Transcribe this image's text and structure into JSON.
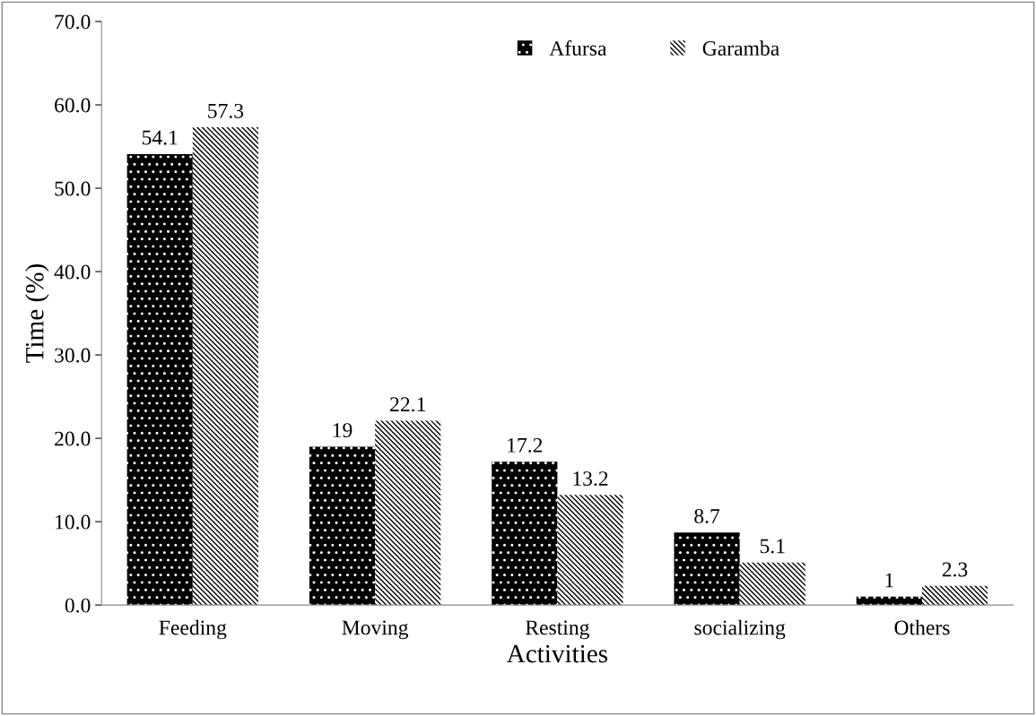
{
  "chart_data": {
    "type": "bar",
    "xlabel": "Activities",
    "ylabel": "Time (%)",
    "categories": [
      "Feeding",
      "Moving",
      "Resting",
      "socializing",
      "Others"
    ],
    "series": [
      {
        "name": "Afursa",
        "color": "#000000",
        "values": [
          54.1,
          19,
          17.2,
          8.7,
          1
        ]
      },
      {
        "name": "Garamba",
        "color": "#ffffff",
        "values": [
          57.3,
          22.1,
          13.2,
          5.1,
          2.3
        ]
      }
    ],
    "ylim": [
      0,
      70
    ],
    "yticks": [
      {
        "value": 0,
        "label": "0.0"
      },
      {
        "value": 10,
        "label": "10.0"
      },
      {
        "value": 20,
        "label": "20.0"
      },
      {
        "value": 30,
        "label": "30.0"
      },
      {
        "value": 40,
        "label": "40.0"
      },
      {
        "value": 50,
        "label": "50.0"
      },
      {
        "value": 60,
        "label": "60.0"
      },
      {
        "value": 70,
        "label": "70.0"
      }
    ],
    "data_labels": true,
    "legend": "top",
    "grid": false
  }
}
